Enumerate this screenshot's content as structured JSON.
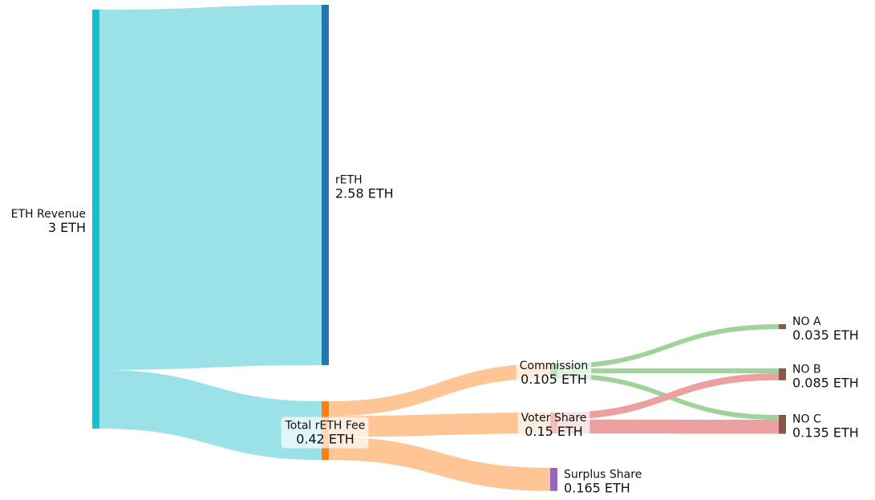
{
  "diagram": {
    "type": "sankey",
    "unit": "ETH",
    "nodes": [
      {
        "id": "eth-revenue",
        "name": "ETH Revenue",
        "value_label": "3 ETH",
        "value": 3,
        "color": "#17becf"
      },
      {
        "id": "reth",
        "name": "rETH",
        "value_label": "2.58 ETH",
        "value": 2.58,
        "color": "#1f77b4"
      },
      {
        "id": "total-reth-fee",
        "name": "Total rETH Fee",
        "value_label": "0.42 ETH",
        "value": 0.42,
        "color": "#ff7f0e"
      },
      {
        "id": "commission",
        "name": "Commission",
        "value_label": "0.105 ETH",
        "value": 0.105,
        "color": "#2ca02c"
      },
      {
        "id": "voter-share",
        "name": "Voter Share",
        "value_label": "0.15 ETH",
        "value": 0.15,
        "color": "#d62728"
      },
      {
        "id": "surplus-share",
        "name": "Surplus Share",
        "value_label": "0.165 ETH",
        "value": 0.165,
        "color": "#9467bd"
      },
      {
        "id": "no-a",
        "name": "NO A",
        "value_label": "0.035 ETH",
        "value": 0.035,
        "color": "#8c564b"
      },
      {
        "id": "no-b",
        "name": "NO B",
        "value_label": "0.085 ETH",
        "value": 0.085,
        "color": "#8c564b"
      },
      {
        "id": "no-c",
        "name": "NO C",
        "value_label": "0.135 ETH",
        "value": 0.135,
        "color": "#8c564b"
      }
    ],
    "links": [
      {
        "source": "eth-revenue",
        "target": "reth",
        "value": 2.58,
        "color": "#9ae1e8"
      },
      {
        "source": "eth-revenue",
        "target": "total-reth-fee",
        "value": 0.42,
        "color": "#9ae1e8"
      },
      {
        "source": "total-reth-fee",
        "target": "commission",
        "value": 0.105,
        "color": "#ffc594"
      },
      {
        "source": "total-reth-fee",
        "target": "voter-share",
        "value": 0.15,
        "color": "#ffc594"
      },
      {
        "source": "total-reth-fee",
        "target": "surplus-share",
        "value": 0.165,
        "color": "#ffc594"
      },
      {
        "source": "commission",
        "target": "no-a",
        "value": 0.035,
        "color": "#9fd39a"
      },
      {
        "source": "commission",
        "target": "no-b",
        "value": 0.035,
        "color": "#9fd39a"
      },
      {
        "source": "commission",
        "target": "no-c",
        "value": 0.035,
        "color": "#9fd39a"
      },
      {
        "source": "voter-share",
        "target": "no-b",
        "value": 0.05,
        "color": "#eda0a0"
      },
      {
        "source": "voter-share",
        "target": "no-c",
        "value": 0.1,
        "color": "#eda0a0"
      }
    ]
  }
}
